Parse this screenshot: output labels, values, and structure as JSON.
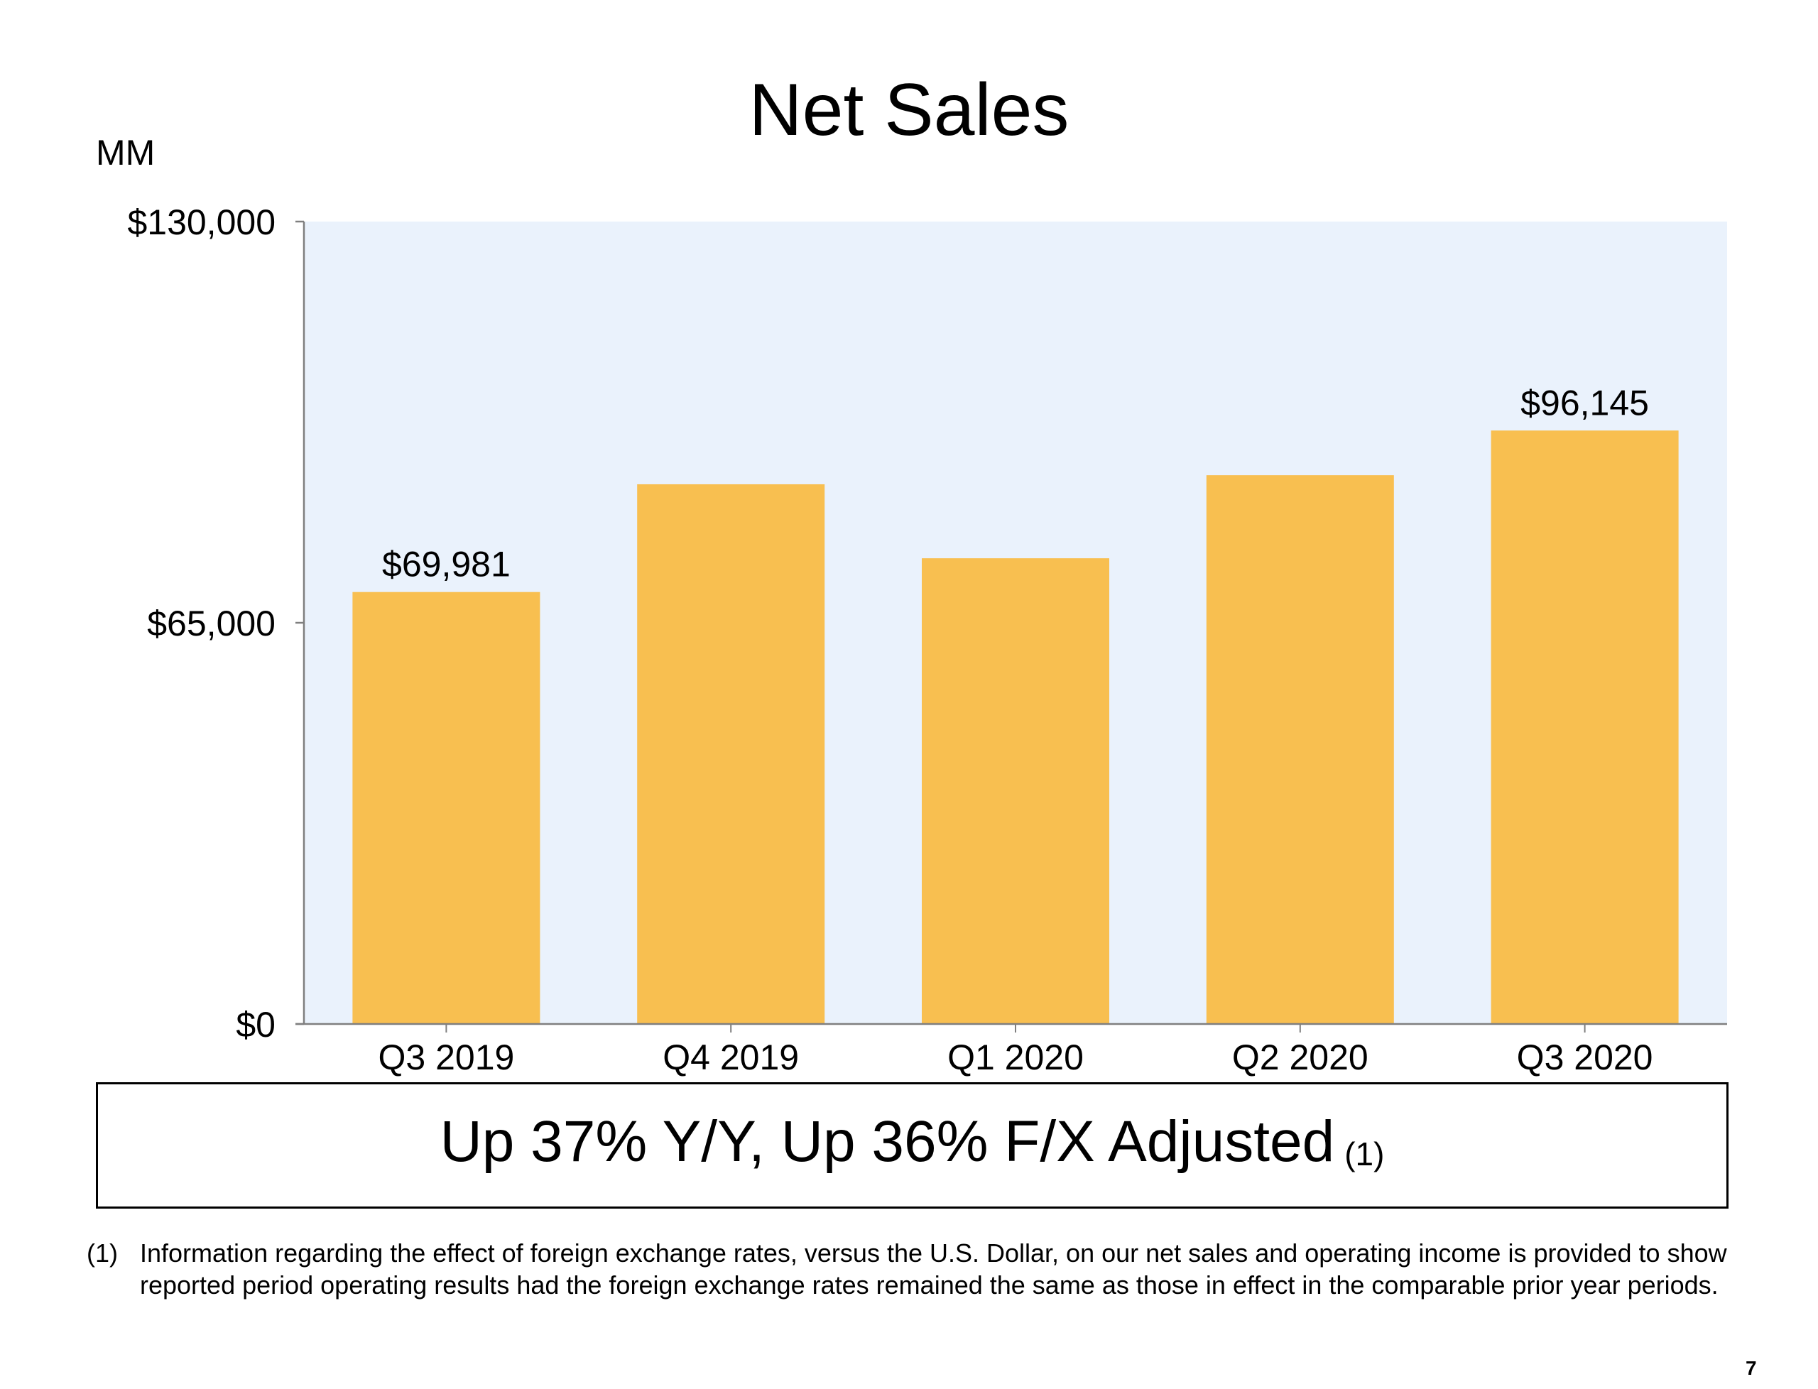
{
  "title": "Net Sales",
  "unit_label": "MM",
  "chart_data": {
    "type": "bar",
    "title": "Net Sales",
    "ylabel": "MM",
    "xlabel": "",
    "categories": [
      "Q3 2019",
      "Q4 2019",
      "Q1 2020",
      "Q2 2020",
      "Q3 2020"
    ],
    "values": [
      69981,
      87437,
      75452,
      88912,
      96145
    ],
    "data_labels": [
      "$69,981",
      "",
      "",
      "",
      "$96,145"
    ],
    "ylim": [
      0,
      130000
    ],
    "yticks": [
      0,
      65000,
      130000
    ],
    "ytick_labels": [
      "$0",
      "$65,000",
      "$130,000"
    ],
    "grid": false,
    "legend": "none",
    "bar_color": "#F8BF50",
    "plot_background": "#EAF2FC"
  },
  "callout": {
    "text": "Up 37% Y/Y, Up 36% F/X Adjusted",
    "ref": "(1)"
  },
  "footnote": {
    "marker": "(1)",
    "text": "Information regarding the effect of foreign exchange rates, versus the U.S. Dollar, on our net sales and operating income is provided to show reported period operating results had the foreign exchange rates remained the same as those in effect in the comparable prior year periods."
  },
  "page_number": "7"
}
